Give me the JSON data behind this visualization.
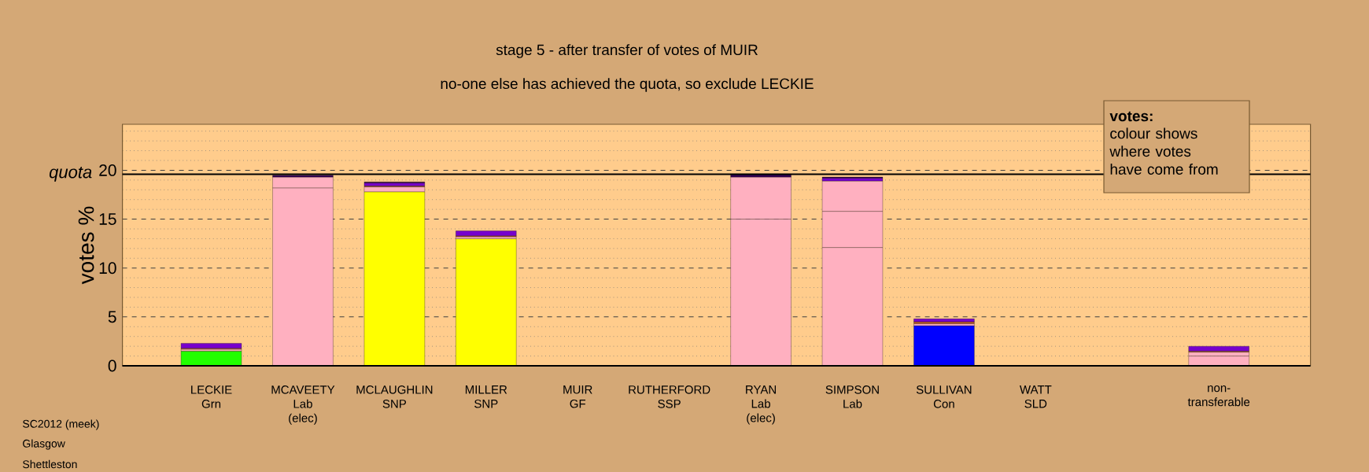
{
  "chart_data": {
    "type": "bar",
    "stacked": true,
    "title": "stage 5 - after transfer of votes of MUIR",
    "subtitle": "no-one else has achieved the quota, so exclude LECKIE",
    "ylabel": "votes %",
    "categories": [
      "LECKIE Grn",
      "MCAVEETY Lab (elec)",
      "MCLAUGHLIN SNP",
      "MILLER SNP",
      "MUIR GF",
      "RUTHERFORD SSP",
      "RYAN Lab (elec)",
      "SIMPSON Lab",
      "SULLIVAN Con",
      "WATT SLD",
      null,
      "non-transferable"
    ],
    "series": [
      {
        "colors": [
          "#22ff00",
          "#ffb0c0",
          "#ffff00",
          "#ffff00",
          null,
          null,
          "#ffb0c0",
          "#ffb0c0",
          "#0000ff",
          null,
          null,
          "#ffb0c0"
        ],
        "values": [
          1.5,
          18.2,
          17.8,
          13.0,
          null,
          null,
          15.0,
          12.1,
          4.1,
          null,
          null,
          1.0
        ]
      },
      {
        "color": "#ffb0c0",
        "values": [
          0.2,
          1.1,
          0.5,
          0.2,
          null,
          null,
          4.3,
          3.7,
          0.2,
          null,
          null,
          0.4
        ]
      },
      {
        "color": "#ffb0c0",
        "values": [
          null,
          null,
          null,
          null,
          null,
          null,
          null,
          3.1,
          null,
          null,
          null,
          null
        ]
      },
      {
        "color": "#c06030",
        "values": [
          0.1,
          null,
          0.1,
          0.1,
          null,
          null,
          null,
          null,
          0.2,
          null,
          null,
          0.1
        ]
      },
      {
        "color": "#7700cc",
        "values": [
          0.5,
          null,
          0.3,
          0.5,
          null,
          null,
          null,
          0.3,
          0.3,
          null,
          null,
          0.5
        ]
      },
      {
        "color": "#330055",
        "values": [
          null,
          0.2,
          0.1,
          null,
          null,
          null,
          0.3,
          0.1,
          null,
          null,
          null,
          null
        ]
      }
    ],
    "ylim": [
      0,
      24.7
    ],
    "yticks": [
      0,
      5,
      10,
      15,
      20
    ],
    "grid": "y",
    "ref_lines": [
      {
        "axis": "y",
        "value": 19.6,
        "label": "quota",
        "color": "#000000"
      }
    ],
    "annotations": [
      "votes:",
      "colour shows where votes have come from",
      "SC2012 (meek)",
      "Glasgow",
      "Shettleston"
    ]
  }
}
